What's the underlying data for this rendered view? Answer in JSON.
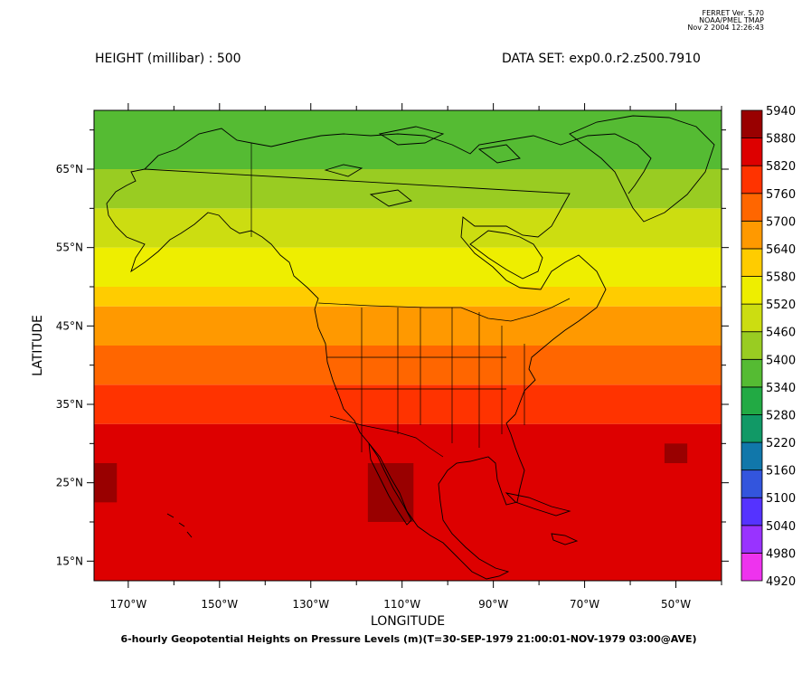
{
  "ferret_info": {
    "line1": "FERRET Ver. 5.70",
    "line2": "NOAA/PMEL TMAP",
    "line3": "Nov  2 2004 12:26:43"
  },
  "header": {
    "variable": "HEIGHT (millibar) : 500",
    "dataset": "DATA SET: exp0.0.r2.z500.7910"
  },
  "chart_data": {
    "type": "heatmap",
    "title": "6-hourly Geopotential Heights on Pressure Levels (m)(T=30-SEP-1979 21:00:01-NOV-1979 03:00@AVE)",
    "xlabel": "LONGITUDE",
    "ylabel": "LATITUDE",
    "xlim": [
      -177.5,
      -40
    ],
    "ylim": [
      12.5,
      72.5
    ],
    "x_ticks": [
      -170,
      -150,
      -130,
      -110,
      -90,
      -70,
      -50
    ],
    "x_tick_labels": [
      "170°W",
      "150°W",
      "130°W",
      "110°W",
      "90°W",
      "70°W",
      "50°W"
    ],
    "y_ticks": [
      15,
      25,
      35,
      45,
      55,
      65
    ],
    "y_tick_labels": [
      "15°N",
      "25°N",
      "35°N",
      "45°N",
      "55°N",
      "65°N"
    ],
    "colorbar_levels": [
      4920,
      4980,
      5040,
      5100,
      5160,
      5220,
      5280,
      5340,
      5400,
      5460,
      5520,
      5580,
      5640,
      5700,
      5760,
      5820,
      5880,
      5940
    ],
    "colorbar_colors": [
      "#ee33ee",
      "#9933ff",
      "#5533ff",
      "#3355dd",
      "#1177aa",
      "#119966",
      "#22aa44",
      "#55bb33",
      "#99cc22",
      "#ccdd11",
      "#eeee00",
      "#ffcc00",
      "#ff9900",
      "#ff6600",
      "#ff3300",
      "#dd0000",
      "#990000"
    ],
    "grid_resolution_deg": 2.5,
    "band_levels_by_latitude": [
      {
        "lat_min": 12.5,
        "lat_max": 32.5,
        "level": 5820
      },
      {
        "lat_min": 32.5,
        "lat_max": 37.5,
        "level": 5760
      },
      {
        "lat_min": 37.5,
        "lat_max": 42.5,
        "level": 5700
      },
      {
        "lat_min": 42.5,
        "lat_max": 47.5,
        "level": 5640
      },
      {
        "lat_min": 47.5,
        "lat_max": 50,
        "level": 5580
      },
      {
        "lat_min": 50,
        "lat_max": 55,
        "level": 5520
      },
      {
        "lat_min": 55,
        "lat_max": 60,
        "level": 5460
      },
      {
        "lat_min": 60,
        "lat_max": 65,
        "level": 5400
      },
      {
        "lat_min": 65,
        "lat_max": 72.5,
        "level": 5340
      }
    ],
    "high_patches": [
      {
        "lon": [
          -177.5,
          -172.5
        ],
        "lat": [
          22.5,
          27.5
        ],
        "level": 5880
      },
      {
        "lon": [
          -117.5,
          -107.5
        ],
        "lat": [
          20,
          27.5
        ],
        "level": 5880
      },
      {
        "lon": [
          -52.5,
          -47.5
        ],
        "lat": [
          27.5,
          30
        ],
        "level": 5880
      }
    ]
  }
}
